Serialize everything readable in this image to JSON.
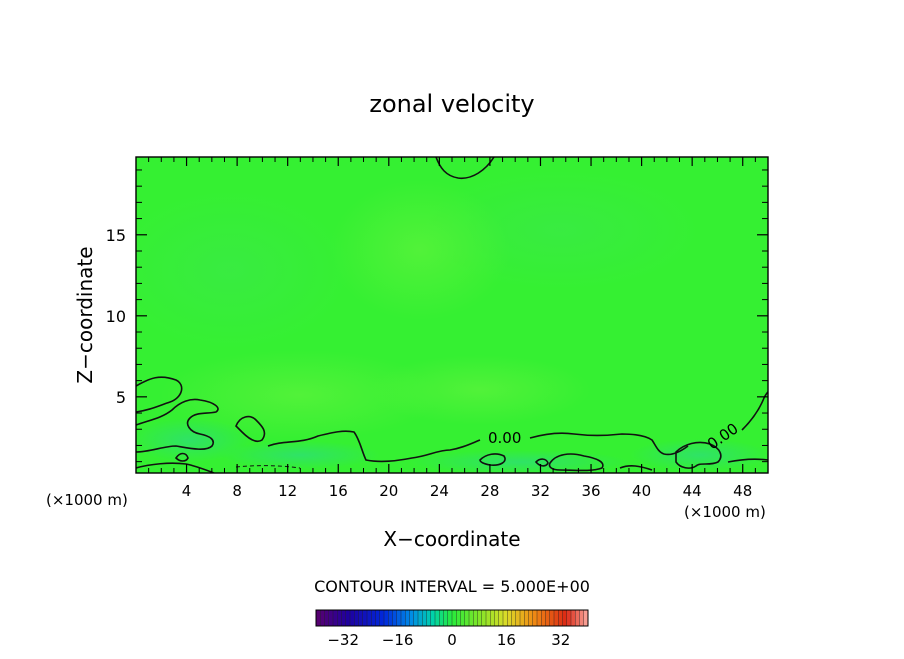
{
  "chart_data": {
    "type": "heatmap",
    "title": "zonal velocity",
    "xlabel": "X−coordinate",
    "ylabel": "Z−coordinate",
    "xlim": [
      0,
      50
    ],
    "ylim": [
      0.3,
      19.8
    ],
    "x_ticks": [
      "4",
      "8",
      "12",
      "16",
      "20",
      "24",
      "28",
      "32",
      "36",
      "40",
      "44",
      "48"
    ],
    "x_tick_values": [
      4,
      8,
      12,
      16,
      20,
      24,
      28,
      32,
      36,
      40,
      44,
      48
    ],
    "y_ticks": [
      "5",
      "10",
      "15"
    ],
    "y_tick_values": [
      5,
      10,
      15
    ],
    "x_unit_left": "(×1000 m)",
    "x_unit_right": "(×1000 m)",
    "contour_labels": [
      "0.00",
      "0.00"
    ],
    "contour_interval_text": "CONTOUR INTERVAL = 5.000E+00",
    "colorbar": {
      "tick_labels": [
        "−32",
        "−16",
        "0",
        "16",
        "32"
      ],
      "tick_values": [
        -32,
        -16,
        0,
        16,
        32
      ],
      "range": [
        -40,
        40
      ]
    },
    "field_description_values": {
      "dominant_value": 0,
      "min_estimate": -5,
      "max_estimate": 5
    },
    "colors": {
      "field_base": "#35f032",
      "field_light": "#4cf238",
      "field_cyan": "#2fdd72",
      "contour": "#111111"
    }
  }
}
